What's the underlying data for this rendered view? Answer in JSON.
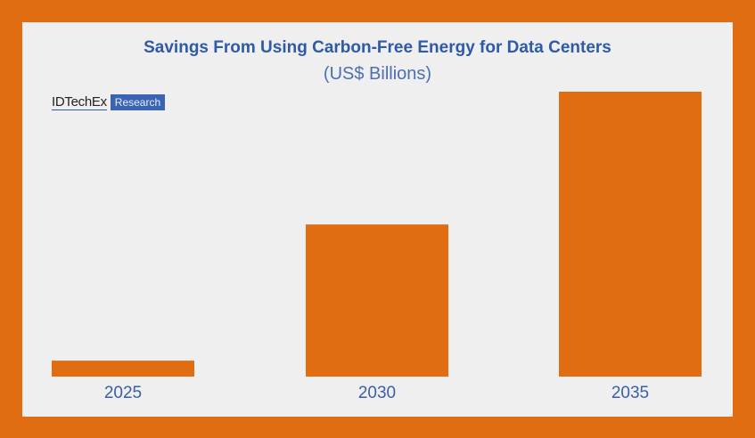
{
  "chart_data": {
    "type": "bar",
    "title": "Savings From Using Carbon-Free Energy for Data Centers",
    "subtitle": "(US$ Billions)",
    "categories": [
      "2025",
      "2030",
      "2035"
    ],
    "values": [
      5.6,
      53.4,
      100
    ],
    "value_units": "relative (no axis values printed; % of 2035 bar)",
    "ylim": [
      0,
      100
    ],
    "grid": false,
    "bar_color": "#e06d12",
    "label_color": "#3b5ea8",
    "title_color": "#2e5aa8"
  },
  "logo": {
    "brand": "IDTechEx",
    "tag": "Research"
  },
  "colors": {
    "border": "#e06d12",
    "background": "#efefef"
  }
}
